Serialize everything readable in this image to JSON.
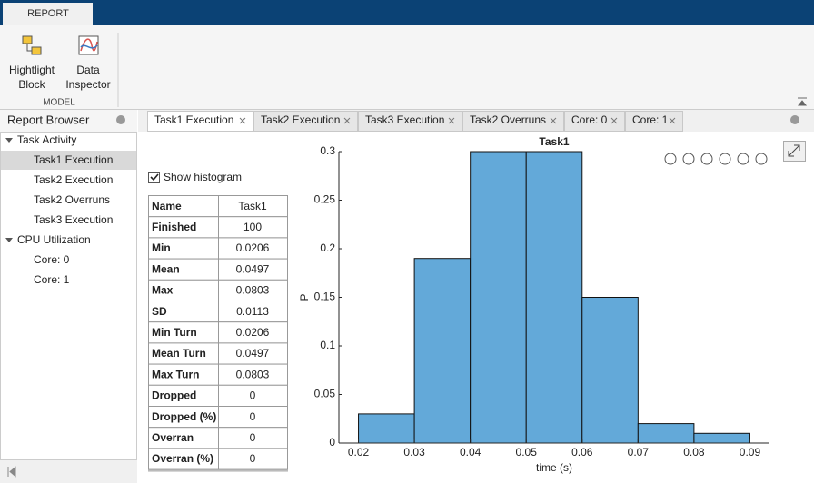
{
  "ribbon": {
    "tab": "REPORT",
    "buttons": [
      {
        "lines": [
          "Hightlight",
          "Block"
        ]
      },
      {
        "lines": [
          "Data",
          "Inspector"
        ]
      }
    ],
    "section": "MODEL"
  },
  "browser": {
    "title": "Report Browser",
    "tree": [
      {
        "label": "Task Activity",
        "children": [
          "Task1 Execution",
          "Task2 Execution",
          "Task2 Overruns",
          "Task3 Execution"
        ]
      },
      {
        "label": "CPU Utilization",
        "children": [
          "Core: 0",
          "Core: 1"
        ]
      }
    ]
  },
  "tabs": [
    "Task1 Execution",
    "Task2 Execution",
    "Task3 Execution",
    "Task2 Overruns",
    "Core: 0",
    "Core: 1"
  ],
  "checkbox": {
    "label": "Show histogram",
    "checked": true
  },
  "stats": {
    "rows": [
      [
        "Name",
        "Task1"
      ],
      [
        "Finished",
        100
      ],
      [
        "Min",
        0.0206
      ],
      [
        "Mean",
        0.0497
      ],
      [
        "Max",
        0.0803
      ],
      [
        "SD",
        0.0113
      ],
      [
        "Min Turn",
        0.0206
      ],
      [
        "Mean Turn",
        0.0497
      ],
      [
        "Max Turn",
        0.0803
      ],
      [
        "Dropped",
        0
      ],
      [
        "Dropped (%)",
        0
      ],
      [
        "Overran",
        0
      ],
      [
        "Overran (%)",
        0
      ]
    ]
  },
  "chart_data": {
    "type": "histogram",
    "title": "Task1",
    "x_label": "time (s)",
    "y_label": "P",
    "bins": [
      0.02,
      0.03,
      0.04,
      0.05,
      0.06,
      0.07,
      0.08,
      0.09
    ],
    "values": [
      0.03,
      0.19,
      0.3,
      0.3,
      0.15,
      0.02,
      0.01
    ],
    "color": "#63a9d9",
    "xlim": [
      0.0165,
      0.0935
    ],
    "xticks": [
      0.02,
      0.03,
      0.04,
      0.05,
      0.06,
      0.07,
      0.08,
      0.09
    ],
    "ylim": [
      0,
      0.3
    ],
    "yticks": [
      0,
      0.05,
      0.1,
      0.15,
      0.2,
      0.25,
      0.3
    ]
  }
}
